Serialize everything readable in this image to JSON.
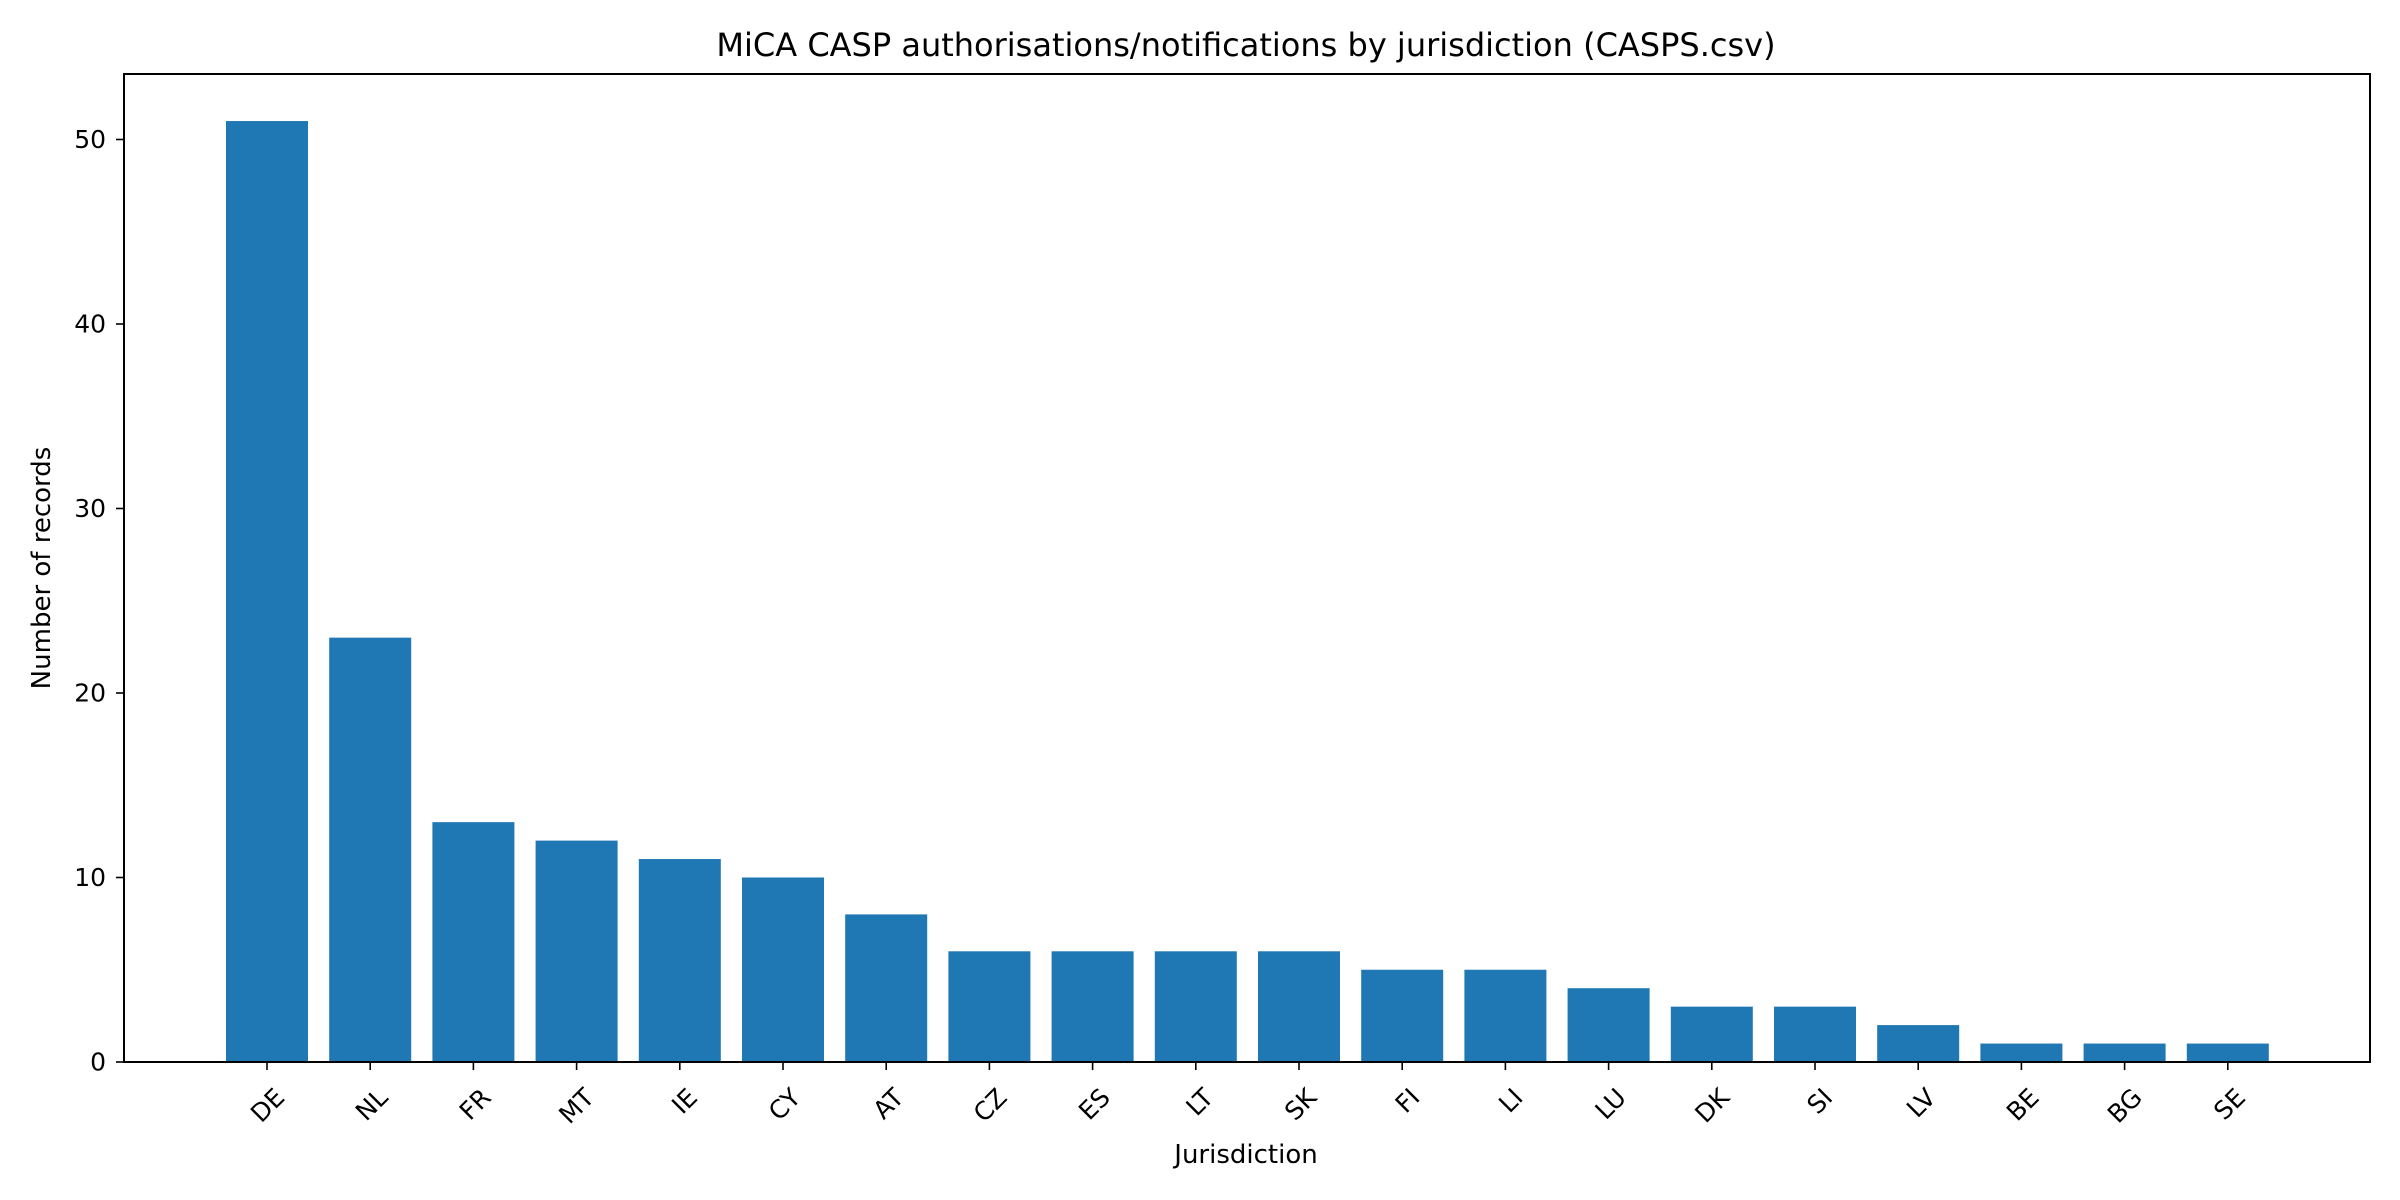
{
  "chart_data": {
    "type": "bar",
    "title": "MiCA CASP authorisations/notifications by jurisdiction (CASPS.csv)",
    "xlabel": "Jurisdiction",
    "ylabel": "Number of records",
    "categories": [
      "DE",
      "NL",
      "FR",
      "MT",
      "IE",
      "CY",
      "AT",
      "CZ",
      "ES",
      "LT",
      "SK",
      "FI",
      "LI",
      "LU",
      "DK",
      "SI",
      "LV",
      "BE",
      "BG",
      "SE"
    ],
    "values": [
      51,
      23,
      13,
      12,
      11,
      10,
      8,
      6,
      6,
      6,
      6,
      5,
      5,
      4,
      3,
      3,
      2,
      1,
      1,
      1
    ],
    "ylim": [
      0,
      53.55
    ],
    "yticks": [
      0,
      10,
      20,
      30,
      40,
      50
    ],
    "bar_color": "#1f77b4",
    "grid": false,
    "legend": "none",
    "xtick_rotation": "45 degrees"
  }
}
